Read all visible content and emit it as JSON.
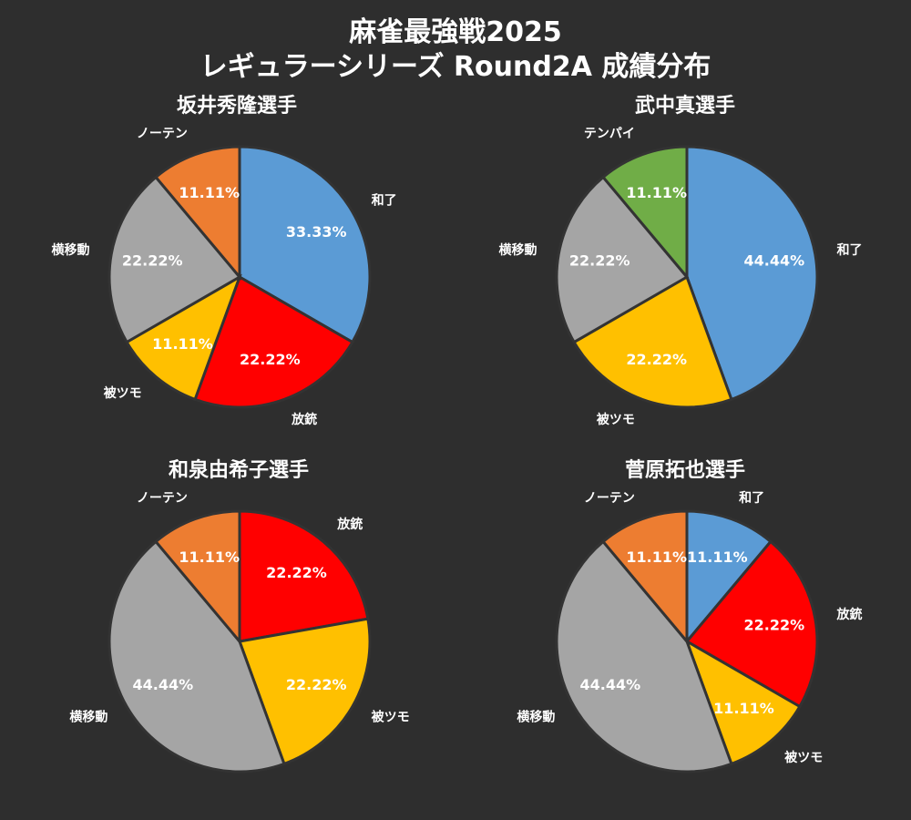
{
  "title_line1": "麻雀最強戦2025",
  "title_line2": "レギュラーシリーズ Round2A 成績分布",
  "colors": {
    "background": "#2e2e2e",
    "和了": "#5b9bd5",
    "放銃": "#ff0000",
    "被ツモ": "#ffc000",
    "横移動": "#a5a5a5",
    "ノーテン": "#ed7d31",
    "テンパイ": "#70ad47",
    "slice_border": "#333333"
  },
  "chart_data": [
    {
      "type": "pie",
      "title": "坂井秀隆選手",
      "slices": [
        {
          "label": "和了",
          "value": 33.33,
          "pct_label": "33.33%"
        },
        {
          "label": "放銃",
          "value": 22.22,
          "pct_label": "22.22%"
        },
        {
          "label": "被ツモ",
          "value": 11.11,
          "pct_label": "11.11%"
        },
        {
          "label": "横移動",
          "value": 22.22,
          "pct_label": "22.22%"
        },
        {
          "label": "ノーテン",
          "value": 11.11,
          "pct_label": "11.11%"
        }
      ]
    },
    {
      "type": "pie",
      "title": "武中真選手",
      "slices": [
        {
          "label": "和了",
          "value": 44.44,
          "pct_label": "44.44%"
        },
        {
          "label": "被ツモ",
          "value": 22.22,
          "pct_label": "22.22%"
        },
        {
          "label": "横移動",
          "value": 22.22,
          "pct_label": "22.22%"
        },
        {
          "label": "テンパイ",
          "value": 11.11,
          "pct_label": "11.11%"
        }
      ]
    },
    {
      "type": "pie",
      "title": "和泉由希子選手",
      "slices": [
        {
          "label": "放銃",
          "value": 22.22,
          "pct_label": "22.22%"
        },
        {
          "label": "被ツモ",
          "value": 22.22,
          "pct_label": "22.22%"
        },
        {
          "label": "横移動",
          "value": 44.44,
          "pct_label": "44.44%"
        },
        {
          "label": "ノーテン",
          "value": 11.11,
          "pct_label": "11.11%"
        }
      ]
    },
    {
      "type": "pie",
      "title": "菅原拓也選手",
      "slices": [
        {
          "label": "和了",
          "value": 11.11,
          "pct_label": "11.11%"
        },
        {
          "label": "放銃",
          "value": 22.22,
          "pct_label": "22.22%"
        },
        {
          "label": "被ツモ",
          "value": 11.11,
          "pct_label": "11.11%"
        },
        {
          "label": "横移動",
          "value": 44.44,
          "pct_label": "44.44%"
        },
        {
          "label": "ノーテン",
          "value": 11.11,
          "pct_label": "11.11%"
        }
      ]
    }
  ]
}
